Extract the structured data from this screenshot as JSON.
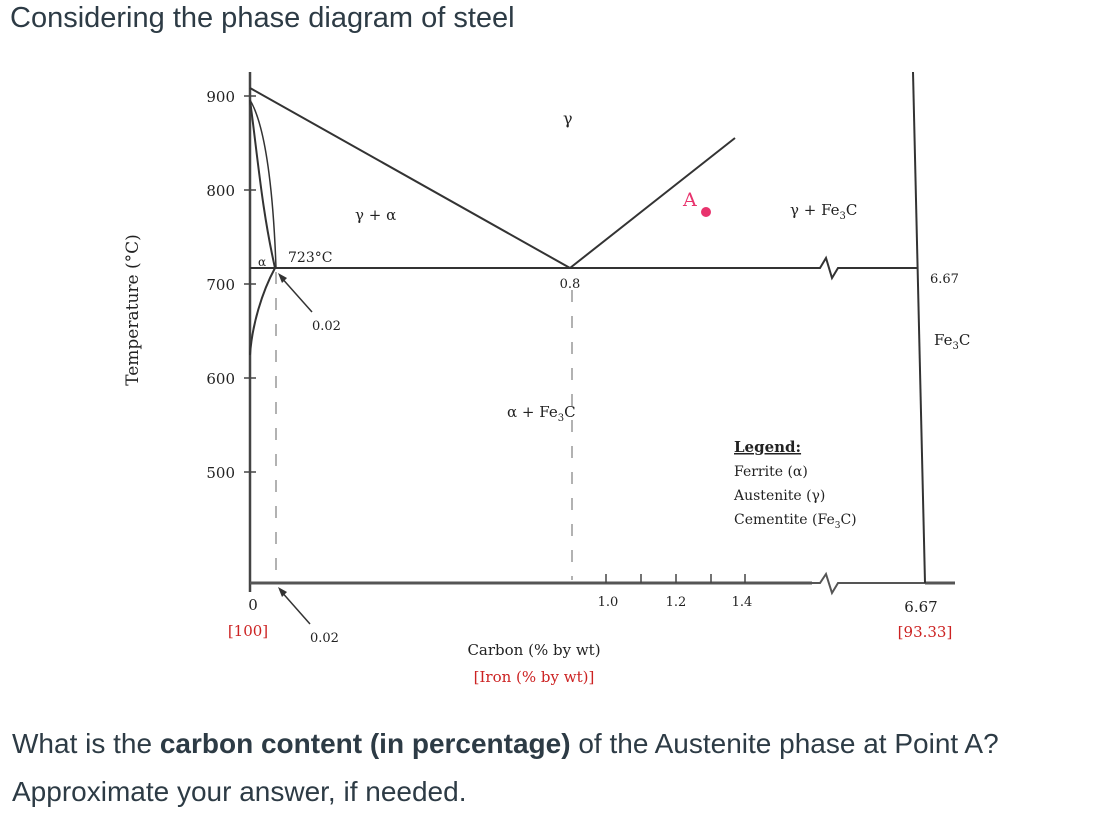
{
  "question": {
    "title": "Considering the phase diagram of steel",
    "prompt_prefix": "What is the ",
    "prompt_bold": "carbon content (in percentage)",
    "prompt_suffix": " of the Austenite phase at Point A?",
    "prompt_line2": "Approximate your answer, if needed."
  },
  "diagram": {
    "y_axis_label": "Temperature (°C)",
    "y_ticks": [
      "900",
      "800",
      "700",
      "600",
      "500"
    ],
    "x_origin_label": "0",
    "x_origin_iron": "[100]",
    "x_ticks": [
      "1.0",
      "1.2",
      "1.4"
    ],
    "x_axis_label": "Carbon (% by wt)",
    "x_axis_iron_label": "[Iron (% by wt)]",
    "x_end_label": "6.67",
    "x_end_iron": "[93.33]",
    "eutectoid_temp_label": "723°C",
    "eutectoid_comp_label": "0.8",
    "ferrite_limit_label": "0.02",
    "ferrite_limit_bottom_label": "0.02",
    "cementite_comp_label": "6.67",
    "point_label": "A",
    "regions": {
      "gamma": "γ",
      "gamma_alpha": "γ + α",
      "alpha": "α",
      "gamma_fe3c_prefix": "γ + Fe",
      "alpha_fe3c_prefix": "α + Fe",
      "fe3c_prefix": "Fe",
      "sub3": "3",
      "c": "C"
    },
    "legend": {
      "title": "Legend:",
      "items": [
        "Ferrite (α)",
        "Austenite (γ)"
      ],
      "cementite_prefix": "Cementite (Fe",
      "cementite_suffix": "C)"
    },
    "colors": {
      "line": "#333333",
      "axis": "#555555",
      "red_text": "#cc2222",
      "point": "#e8336d",
      "label": "#222222"
    }
  }
}
